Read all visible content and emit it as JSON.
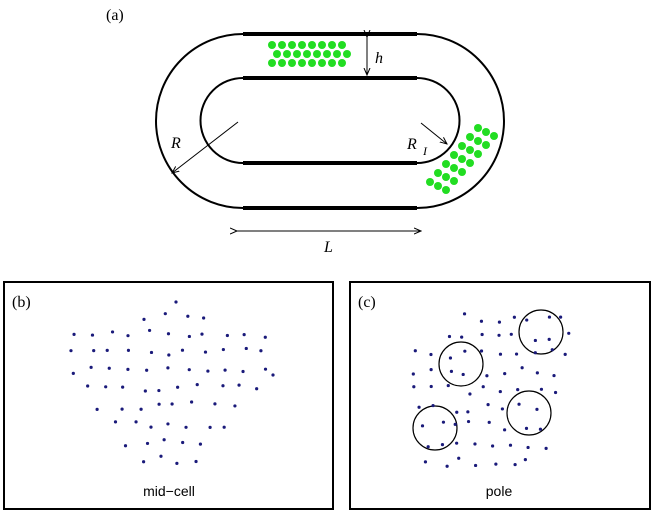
{
  "panel_a": {
    "label": "(a)",
    "height_label": "h",
    "radius_label": "R",
    "inner_radius_label": "R",
    "inner_radius_subscript": "I",
    "length_label": "L"
  },
  "panel_b": {
    "label": "(b)",
    "caption": "mid−cell"
  },
  "panel_c": {
    "label": "(c)",
    "caption": "pole"
  }
}
